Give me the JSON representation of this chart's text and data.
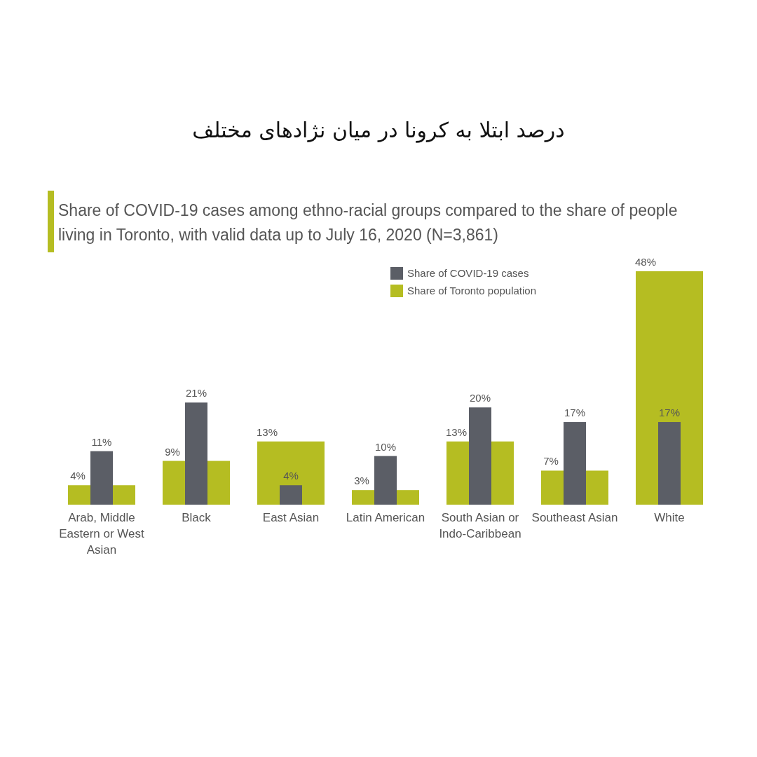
{
  "chart_data": {
    "type": "bar",
    "title": "درصد ابتلا به کرونا در میان نژادهای مختلف",
    "subtitle": "Share of COVID-19 cases among ethno-racial groups compared to the share of people living in Toronto, with valid data up to July 16, 2020 (N=3,861)",
    "categories": [
      "Arab, Middle Eastern or West Asian",
      "Black",
      "East Asian",
      "Latin American",
      "South Asian or Indo-Caribbean",
      "Southeast Asian",
      "White"
    ],
    "series": [
      {
        "name": "Share of COVID-19 cases",
        "color": "#5b5e66",
        "values": [
          11,
          21,
          4,
          10,
          20,
          17,
          17
        ],
        "value_labels": [
          "11%",
          "21%",
          "4%",
          "10%",
          "20%",
          "17%",
          "17%"
        ]
      },
      {
        "name": "Share of Toronto population",
        "color": "#b5bd22",
        "values": [
          4,
          9,
          13,
          3,
          13,
          7,
          48
        ],
        "value_labels": [
          "4%",
          "9%",
          "13%",
          "3%",
          "13%",
          "7%",
          "48%"
        ]
      }
    ],
    "legend": "top"
  }
}
